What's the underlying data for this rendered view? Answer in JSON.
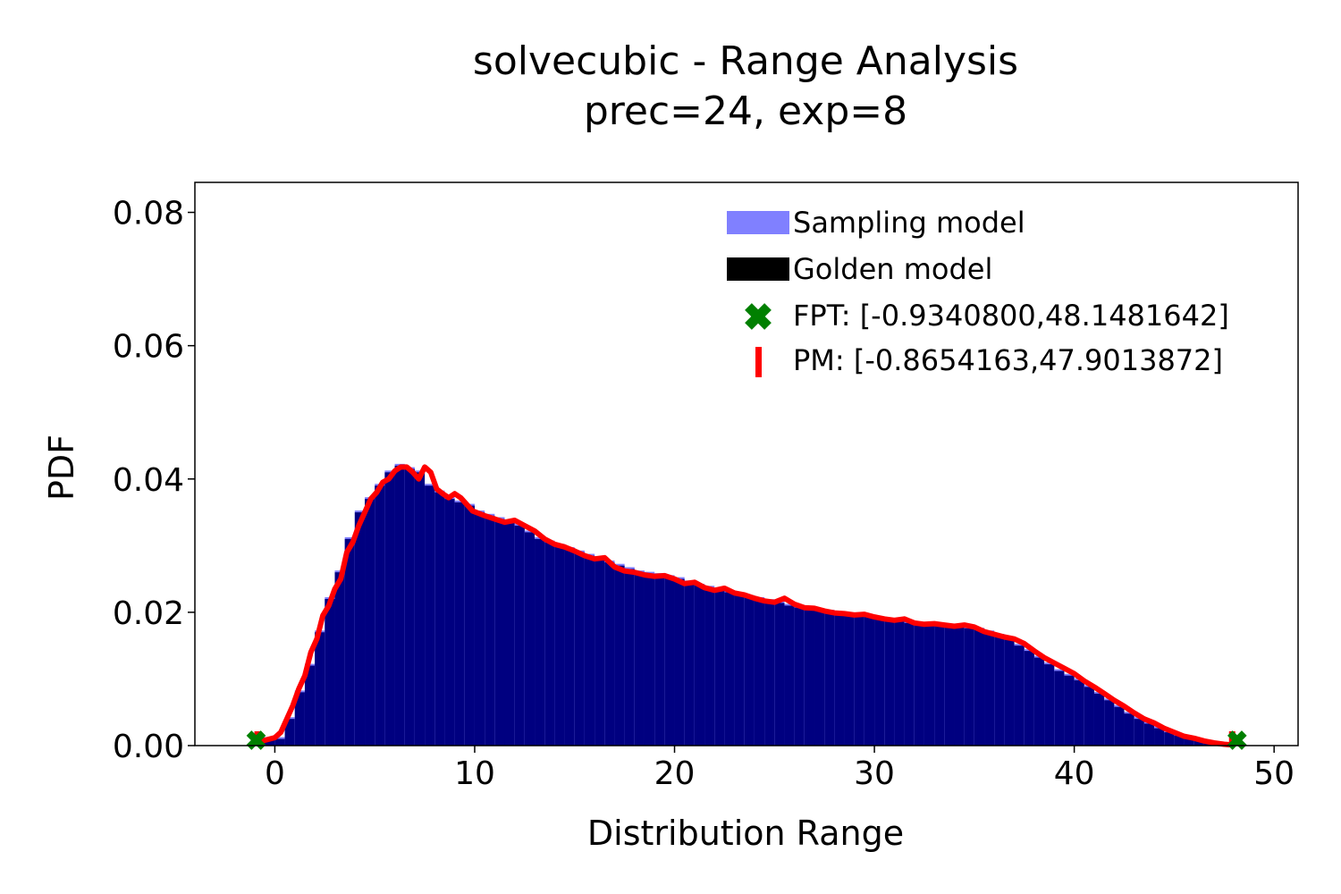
{
  "chart_data": {
    "type": "histogram",
    "title": "solvecubic - Range Analysis",
    "subtitle": "prec=24, exp=8",
    "xlabel": "Distribution Range",
    "ylabel": "PDF",
    "xlim": [
      -4,
      51.2
    ],
    "ylim": [
      0,
      0.0845
    ],
    "xticks": [
      0,
      10,
      20,
      30,
      40,
      50
    ],
    "yticks": [
      0.0,
      0.02,
      0.04,
      0.06,
      0.08
    ],
    "xtick_labels": [
      "0",
      "10",
      "20",
      "30",
      "40",
      "50"
    ],
    "ytick_labels": [
      "0.00",
      "0.02",
      "0.04",
      "0.06",
      "0.08"
    ],
    "legend_position": "top-right",
    "legend": {
      "sampling": "Sampling model",
      "golden": "Golden model",
      "fpt": "FPT: [-0.9340800,48.1481642]",
      "pm": "PM: [-0.8654163,47.9013872]"
    },
    "colors": {
      "sampling": "#8080ff",
      "golden": "#000000",
      "overlap": "#000080",
      "pm": "#ff0000",
      "fpt": "#008000"
    },
    "series": [
      {
        "name": "Golden model",
        "x": [
          -0.9,
          0.0,
          0.5,
          1.0,
          1.5,
          2.0,
          2.5,
          3.0,
          3.5,
          4.0,
          4.5,
          5.0,
          5.5,
          6.0,
          6.5,
          7.0,
          7.5,
          8.0,
          8.5,
          9.0,
          9.5,
          10.0,
          10.5,
          11.0,
          11.5,
          12.0,
          12.5,
          13.0,
          13.5,
          14.0,
          14.5,
          15.0,
          15.5,
          16.0,
          16.5,
          17.0,
          17.5,
          18.0,
          18.5,
          19.0,
          19.5,
          20.0,
          20.5,
          21.0,
          21.5,
          22.0,
          22.5,
          23.0,
          23.5,
          24.0,
          24.5,
          25.0,
          25.5,
          26.0,
          26.5,
          27.0,
          27.5,
          28.0,
          28.5,
          29.0,
          29.5,
          30.0,
          30.5,
          31.0,
          31.5,
          32.0,
          32.5,
          33.0,
          33.5,
          34.0,
          34.5,
          35.0,
          35.5,
          36.0,
          36.5,
          37.0,
          37.5,
          38.0,
          38.5,
          39.0,
          39.5,
          40.0,
          40.5,
          41.0,
          41.5,
          42.0,
          42.5,
          43.0,
          43.5,
          44.0,
          44.5,
          45.0,
          45.5,
          46.0,
          46.5,
          47.0,
          47.5,
          48.0
        ],
        "values": [
          0.001,
          0.001,
          0.004,
          0.008,
          0.012,
          0.017,
          0.022,
          0.026,
          0.031,
          0.035,
          0.037,
          0.039,
          0.041,
          0.042,
          0.0415,
          0.041,
          0.039,
          0.038,
          0.037,
          0.0365,
          0.036,
          0.035,
          0.0345,
          0.034,
          0.0335,
          0.033,
          0.032,
          0.031,
          0.0305,
          0.03,
          0.0295,
          0.029,
          0.0285,
          0.028,
          0.0275,
          0.027,
          0.0265,
          0.026,
          0.0258,
          0.0256,
          0.0253,
          0.025,
          0.0245,
          0.024,
          0.0237,
          0.0234,
          0.023,
          0.0227,
          0.0223,
          0.022,
          0.0217,
          0.0214,
          0.021,
          0.0207,
          0.0205,
          0.0203,
          0.0201,
          0.0199,
          0.0197,
          0.0195,
          0.0193,
          0.019,
          0.0188,
          0.0186,
          0.0184,
          0.0183,
          0.0182,
          0.0181,
          0.018,
          0.0178,
          0.0176,
          0.0174,
          0.017,
          0.0165,
          0.016,
          0.015,
          0.0142,
          0.0132,
          0.0122,
          0.0112,
          0.0105,
          0.0098,
          0.0088,
          0.0078,
          0.0068,
          0.0058,
          0.0048,
          0.004,
          0.0033,
          0.0026,
          0.002,
          0.0015,
          0.0011,
          0.0007,
          0.0005,
          0.0003,
          0.0002,
          0.0001
        ]
      },
      {
        "name": "PM",
        "x": [
          -0.9,
          0.0,
          0.3,
          0.6,
          0.9,
          1.2,
          1.5,
          1.8,
          2.1,
          2.4,
          2.7,
          3.0,
          3.3,
          3.6,
          3.9,
          4.2,
          4.5,
          4.8,
          5.1,
          5.4,
          5.7,
          6.0,
          6.3,
          6.6,
          6.9,
          7.2,
          7.5,
          7.8,
          8.1,
          8.4,
          8.7,
          9.0,
          9.3,
          9.6,
          9.9,
          10.5,
          11.0,
          11.5,
          12.0,
          12.5,
          13.0,
          13.5,
          14.0,
          14.5,
          15.0,
          15.5,
          16.0,
          16.5,
          17.0,
          17.5,
          18.0,
          18.5,
          19.0,
          19.5,
          20.0,
          20.5,
          21.0,
          21.5,
          22.0,
          22.5,
          23.0,
          23.5,
          24.0,
          24.5,
          25.0,
          25.5,
          26.0,
          26.5,
          27.0,
          27.5,
          28.0,
          28.5,
          29.0,
          29.5,
          30.0,
          30.5,
          31.0,
          31.5,
          32.0,
          32.5,
          33.0,
          33.5,
          34.0,
          34.5,
          35.0,
          35.5,
          36.0,
          36.5,
          37.0,
          37.5,
          38.0,
          38.5,
          39.0,
          39.5,
          40.0,
          40.5,
          41.0,
          41.5,
          42.0,
          42.5,
          43.0,
          43.5,
          44.0,
          44.5,
          45.0,
          45.5,
          46.0,
          46.5,
          47.0,
          47.5,
          47.9
        ],
        "values": [
          0.0005,
          0.0012,
          0.002,
          0.004,
          0.006,
          0.0085,
          0.0105,
          0.014,
          0.016,
          0.0195,
          0.021,
          0.0235,
          0.025,
          0.029,
          0.0305,
          0.033,
          0.035,
          0.037,
          0.038,
          0.0395,
          0.04,
          0.0412,
          0.0418,
          0.0418,
          0.041,
          0.04,
          0.0418,
          0.041,
          0.0385,
          0.0378,
          0.0372,
          0.0378,
          0.0372,
          0.0362,
          0.0352,
          0.0345,
          0.034,
          0.0335,
          0.0338,
          0.033,
          0.0322,
          0.031,
          0.0302,
          0.0298,
          0.0292,
          0.0285,
          0.028,
          0.0282,
          0.0268,
          0.0262,
          0.026,
          0.0256,
          0.0254,
          0.0255,
          0.025,
          0.0243,
          0.0245,
          0.0237,
          0.0233,
          0.0236,
          0.0229,
          0.0226,
          0.0221,
          0.0217,
          0.0215,
          0.0221,
          0.0212,
          0.0207,
          0.0206,
          0.0202,
          0.0199,
          0.0198,
          0.0196,
          0.0197,
          0.0193,
          0.019,
          0.0188,
          0.019,
          0.0184,
          0.0182,
          0.0183,
          0.0181,
          0.0179,
          0.0181,
          0.0178,
          0.0171,
          0.0167,
          0.0163,
          0.016,
          0.0153,
          0.0142,
          0.0132,
          0.0124,
          0.0116,
          0.0108,
          0.0097,
          0.0088,
          0.0078,
          0.0068,
          0.0059,
          0.0049,
          0.004,
          0.0034,
          0.0026,
          0.002,
          0.0014,
          0.0011,
          0.0007,
          0.0004,
          0.0002,
          0.0001
        ]
      }
    ],
    "markers": {
      "fpt": [
        -0.93408,
        48.1481642
      ],
      "pm": [
        -0.8654163,
        47.9013872
      ]
    }
  }
}
